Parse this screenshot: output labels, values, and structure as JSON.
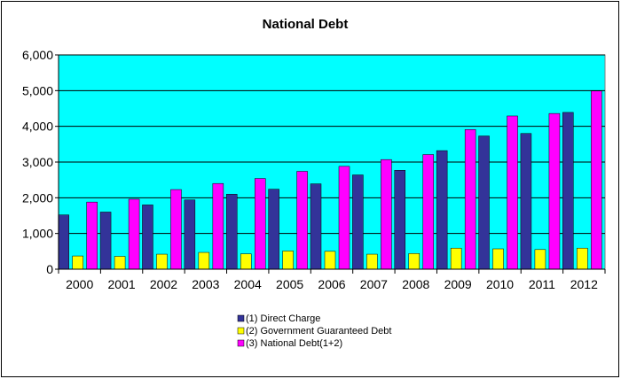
{
  "chart_data": {
    "type": "bar",
    "title": "National Debt",
    "xlabel": "",
    "ylabel": "",
    "categories": [
      "2000",
      "2001",
      "2002",
      "2003",
      "2004",
      "2005",
      "2006",
      "2007",
      "2008",
      "2009",
      "2010",
      "2011",
      "2012"
    ],
    "ylim": [
      0,
      6000
    ],
    "yticks": [
      0,
      1000,
      2000,
      3000,
      4000,
      5000,
      6000
    ],
    "ytick_labels": [
      "0",
      "1,000",
      "2,000",
      "3,000",
      "4,000",
      "5,000",
      "6,000"
    ],
    "grid": true,
    "plot_background": "#00FFFF",
    "legend_position": "bottom",
    "series": [
      {
        "name": "(1) Direct Charge",
        "color": "#333399",
        "values": [
          1520,
          1600,
          1800,
          1940,
          2100,
          2240,
          2390,
          2640,
          2770,
          3320,
          3730,
          3800,
          4390
        ]
      },
      {
        "name": "(2) Government Guaranteed Debt",
        "color": "#FFFF00",
        "values": [
          370,
          360,
          420,
          470,
          430,
          510,
          500,
          420,
          440,
          590,
          570,
          550,
          590
        ]
      },
      {
        "name": "(3) National Debt(1+2)",
        "color": "#FF00FF",
        "values": [
          1880,
          1960,
          2230,
          2400,
          2540,
          2740,
          2880,
          3070,
          3210,
          3910,
          4290,
          4360,
          4990
        ]
      }
    ]
  }
}
